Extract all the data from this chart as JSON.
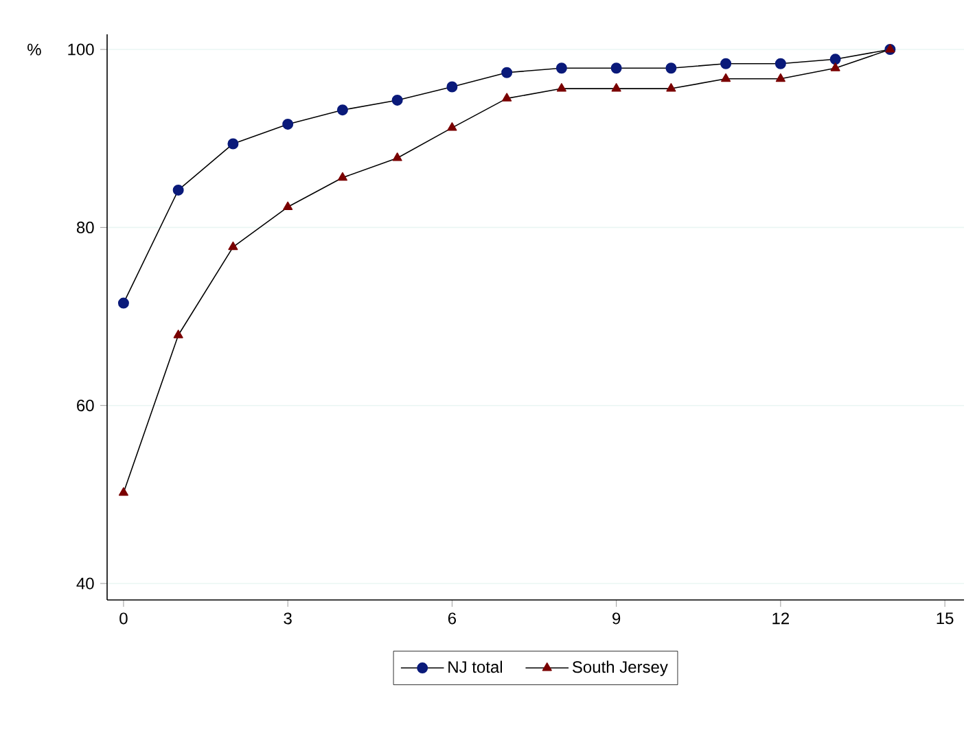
{
  "chart_data": {
    "type": "line",
    "ylabel": "%",
    "x": [
      0,
      1,
      2,
      3,
      4,
      5,
      6,
      7,
      8,
      9,
      10,
      11,
      12,
      13,
      14
    ],
    "series": [
      {
        "name": "NJ total",
        "color": "#0a1a7a",
        "marker": "circle",
        "values": [
          71.5,
          84.2,
          89.4,
          91.6,
          93.2,
          94.3,
          95.8,
          97.4,
          97.9,
          97.9,
          97.9,
          98.4,
          98.4,
          98.9,
          100
        ]
      },
      {
        "name": "South Jersey",
        "color": "#7a0000",
        "marker": "triangle",
        "values": [
          50.2,
          67.9,
          77.8,
          82.3,
          85.6,
          87.8,
          91.2,
          94.5,
          95.6,
          95.6,
          95.6,
          96.7,
          96.7,
          97.9,
          100
        ]
      }
    ],
    "xlim": [
      -0.3,
      15.35
    ],
    "ylim": [
      38.15,
      101.7
    ],
    "xticks": [
      0,
      3,
      6,
      9,
      12,
      15
    ],
    "yticks": [
      40,
      60,
      80,
      100
    ],
    "grid": "y",
    "legend": "bottom",
    "line_style": "solid"
  }
}
